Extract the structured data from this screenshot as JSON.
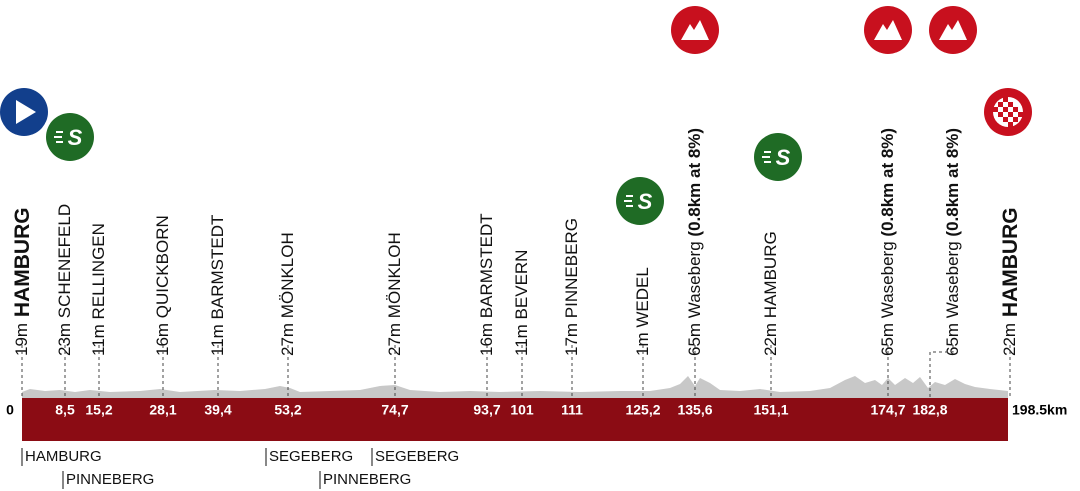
{
  "start_km": "0",
  "end_km": "198.5km",
  "waypoints": [
    {
      "elevation": "19m",
      "name": "HAMBURG"
    },
    {
      "elevation": "23m",
      "name": "SCHENEFELD",
      "km": "8,5"
    },
    {
      "elevation": "11m",
      "name": "RELLINGEN",
      "km": "15,2"
    },
    {
      "elevation": "16m",
      "name": "QUICKBORN",
      "km": "28,1"
    },
    {
      "elevation": "11m",
      "name": "BARMSTEDT",
      "km": "39,4"
    },
    {
      "elevation": "27m",
      "name": "MÖNKLOH",
      "km": "53,2"
    },
    {
      "elevation": "27m",
      "name": "MÖNKLOH",
      "km": "74,7"
    },
    {
      "elevation": "16m",
      "name": "BARMSTEDT",
      "km": "93,7"
    },
    {
      "elevation": "11m",
      "name": "BEVERN",
      "km": "101"
    },
    {
      "elevation": "17m",
      "name": "PINNEBERG",
      "km": "111"
    },
    {
      "elevation": "1m",
      "name": "WEDEL",
      "km": "125,2"
    },
    {
      "elevation": "65m",
      "name": "Waseberg",
      "detail": "(0.8km at 8%)",
      "km": "135,6"
    },
    {
      "elevation": "22m",
      "name": "HAMBURG",
      "km": "151,1"
    },
    {
      "elevation": "65m",
      "name": "Waseberg",
      "detail": "(0.8km at 8%)",
      "km": "174,7"
    },
    {
      "elevation": "65m",
      "name": "Waseberg",
      "detail": "(0.8km at 8%)",
      "km": "182,8"
    },
    {
      "elevation": "22m",
      "name": "HAMBURG"
    }
  ],
  "regions": [
    "HAMBURG",
    "PINNEBERG",
    "SEGEBERG",
    "PINNEBERG",
    "SEGEBERG"
  ]
}
